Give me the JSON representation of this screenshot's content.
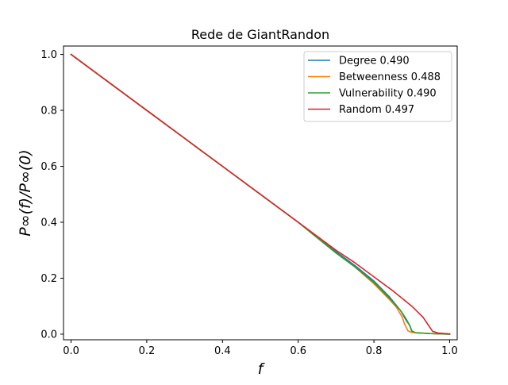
{
  "chart_data": {
    "type": "line",
    "title": "Rede de GiantRandon",
    "xlabel": "f",
    "ylabel": "P∞(f)/P∞(0)",
    "xlim": [
      -0.02,
      1.02
    ],
    "ylim": [
      -0.02,
      1.03
    ],
    "xticks": [
      0.0,
      0.2,
      0.4,
      0.6,
      0.8,
      1.0
    ],
    "xtick_labels": [
      "0.0",
      "0.2",
      "0.4",
      "0.6",
      "0.8",
      "1.0"
    ],
    "yticks": [
      0.0,
      0.2,
      0.4,
      0.6,
      0.8,
      1.0
    ],
    "ytick_labels": [
      "0.0",
      "0.2",
      "0.4",
      "0.6",
      "0.8",
      "1.0"
    ],
    "grid": false,
    "legend_position": "top-right",
    "series": [
      {
        "name": "Degree 0.490",
        "color": "#1f77b4",
        "x": [
          0.0,
          0.1,
          0.2,
          0.3,
          0.4,
          0.5,
          0.6,
          0.7,
          0.75,
          0.8,
          0.84,
          0.87,
          0.885,
          0.895,
          0.9,
          0.91,
          0.95,
          1.0
        ],
        "y": [
          1.0,
          0.9,
          0.8,
          0.7,
          0.6,
          0.5,
          0.4,
          0.295,
          0.245,
          0.19,
          0.135,
          0.085,
          0.05,
          0.03,
          0.01,
          0.005,
          0.002,
          0.0
        ]
      },
      {
        "name": "Betweenness 0.488",
        "color": "#ff7f0e",
        "x": [
          0.0,
          0.1,
          0.2,
          0.3,
          0.4,
          0.5,
          0.6,
          0.7,
          0.75,
          0.8,
          0.84,
          0.86,
          0.875,
          0.88,
          0.885,
          0.89,
          0.9,
          0.95,
          1.0
        ],
        "y": [
          1.0,
          0.9,
          0.8,
          0.7,
          0.6,
          0.5,
          0.4,
          0.29,
          0.24,
          0.18,
          0.125,
          0.095,
          0.06,
          0.04,
          0.025,
          0.012,
          0.006,
          0.002,
          0.0
        ]
      },
      {
        "name": "Vulnerability 0.490",
        "color": "#2ca02c",
        "x": [
          0.0,
          0.1,
          0.2,
          0.3,
          0.4,
          0.5,
          0.6,
          0.7,
          0.75,
          0.8,
          0.84,
          0.87,
          0.885,
          0.895,
          0.9,
          0.91,
          0.95,
          1.0
        ],
        "y": [
          1.0,
          0.9,
          0.8,
          0.7,
          0.6,
          0.5,
          0.4,
          0.29,
          0.24,
          0.185,
          0.13,
          0.085,
          0.055,
          0.03,
          0.012,
          0.005,
          0.002,
          0.0
        ]
      },
      {
        "name": "Random 0.497",
        "color": "#d62728",
        "x": [
          0.0,
          0.1,
          0.2,
          0.3,
          0.4,
          0.5,
          0.6,
          0.7,
          0.75,
          0.8,
          0.85,
          0.9,
          0.93,
          0.945,
          0.955,
          0.97,
          1.0
        ],
        "y": [
          1.0,
          0.9,
          0.8,
          0.7,
          0.6,
          0.5,
          0.4,
          0.3,
          0.255,
          0.205,
          0.155,
          0.1,
          0.06,
          0.03,
          0.01,
          0.004,
          0.001
        ]
      }
    ]
  }
}
